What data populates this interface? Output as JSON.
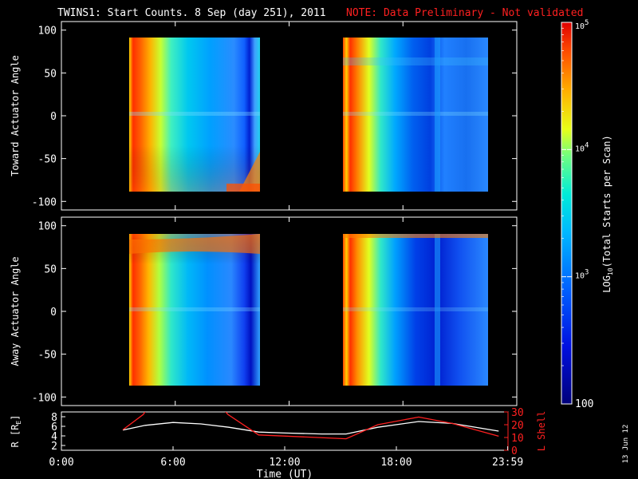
{
  "header": {
    "title": "TWINS1: Start Counts.  8 Sep (day 251), 2011",
    "note": "NOTE: Data Preliminary - Not validated",
    "note_color": "#ff2020"
  },
  "side_stamp": "13 Jun 12",
  "chart_data": [
    {
      "type": "heatmap",
      "ylabel": "Toward Actuator Angle",
      "ylim": [
        -110,
        110
      ],
      "yticks": [
        100,
        50,
        0,
        -50,
        -100
      ],
      "xlim_hours": [
        0,
        24
      ],
      "data_blocks_hours": [
        [
          3.25,
          10.75
        ],
        [
          15.2,
          23.5
        ]
      ],
      "y_extent": [
        -88,
        90
      ]
    },
    {
      "type": "heatmap",
      "ylabel": "Away Actuator Angle",
      "ylim": [
        -110,
        110
      ],
      "yticks": [
        100,
        50,
        0,
        -50,
        -100
      ],
      "xlim_hours": [
        0,
        24
      ],
      "data_blocks_hours": [
        [
          3.25,
          10.75
        ],
        [
          15.2,
          23.5
        ]
      ],
      "y_extent": [
        -88,
        90
      ]
    },
    {
      "type": "line",
      "ylabel_left": "R [R",
      "ylabel_left_sub": "E",
      "ylabel_left_end": "]",
      "ylabel_right": "L Shell",
      "ylim_left": [
        1,
        9
      ],
      "yticks_left": [
        2,
        4,
        6,
        8
      ],
      "ylim_right": [
        0,
        30
      ],
      "yticks_right": [
        0,
        10,
        20,
        30
      ],
      "right_axis_color": "#ff2020",
      "xlabel": "Time (UT)",
      "xticks": [
        "0:00",
        "6:00",
        "12:00",
        "18:00",
        "23:59"
      ],
      "xtick_hours": [
        0,
        6,
        12,
        18,
        23.983
      ],
      "series": [
        {
          "axis": "left",
          "color": "#ffffff",
          "x": [
            3.3,
            4.5,
            6,
            7.5,
            9,
            10.6,
            12,
            14,
            15.3,
            17,
            19.2,
            21,
            23.5
          ],
          "y": [
            5.2,
            6.2,
            6.8,
            6.5,
            5.8,
            4.8,
            4.6,
            4.4,
            4.4,
            5.8,
            7.0,
            6.6,
            5.0
          ]
        },
        {
          "axis": "right",
          "color": "#ff2020",
          "x": [
            3.3,
            4.4,
            4.75,
            8.5,
            8.95,
            10.6,
            15.3,
            17,
            19.2,
            21,
            23.5
          ],
          "y": [
            16,
            28,
            36,
            36,
            28,
            12,
            9,
            20,
            26,
            21,
            11
          ]
        }
      ]
    }
  ],
  "colorbar": {
    "label_prefix": "LOG",
    "label_sub": "10",
    "label_suffix": "(Total Starts per Scan)",
    "tick_bottom": "100",
    "tick_mid": "10",
    "tick_mid_exp": "3",
    "tick_upper": "10",
    "tick_upper_exp": "4",
    "tick_top": "10",
    "tick_top_exp": "5",
    "range_log": [
      2,
      5
    ]
  }
}
